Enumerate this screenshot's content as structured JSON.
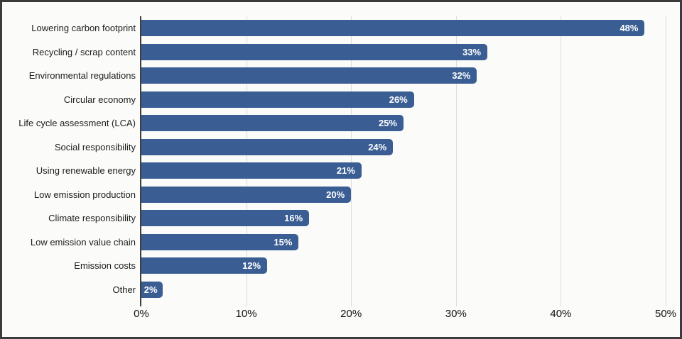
{
  "frame": {
    "border_color": "#3b3b3b",
    "background": "#fbfbf9"
  },
  "chart_data": {
    "type": "bar",
    "orientation": "horizontal",
    "title": "",
    "xlabel": "",
    "ylabel": "",
    "categories": [
      "Lowering carbon footprint",
      "Recycling / scrap content",
      "Environmental regulations",
      "Circular economy",
      "Life cycle assessment (LCA)",
      "Social responsibility",
      "Using renewable energy",
      "Low emission production",
      "Climate responsibility",
      "Low emission value chain",
      "Emission costs",
      "Other"
    ],
    "values": [
      48,
      33,
      32,
      26,
      25,
      24,
      21,
      20,
      16,
      15,
      12,
      2
    ],
    "value_labels": [
      "48%",
      "33%",
      "32%",
      "26%",
      "25%",
      "24%",
      "21%",
      "20%",
      "16%",
      "15%",
      "12%",
      "2%"
    ],
    "xlim": [
      0,
      50
    ],
    "x_ticks": [
      {
        "value": 0,
        "label": "0%"
      },
      {
        "value": 10,
        "label": "10%"
      },
      {
        "value": 20,
        "label": "20%"
      },
      {
        "value": 30,
        "label": "30%"
      },
      {
        "value": 40,
        "label": "40%"
      },
      {
        "value": 50,
        "label": "50%"
      }
    ],
    "grid": "vertical",
    "legend": "none",
    "colors": {
      "bar": "#3a5e94",
      "value_label": "#ffffff",
      "category_label": "#1c1c1c",
      "tick_label": "#111111",
      "gridline": "#dcdcdc",
      "axis_line": "#3f3f3f"
    }
  }
}
